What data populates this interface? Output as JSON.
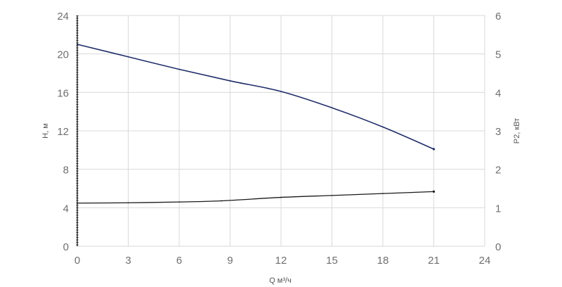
{
  "chart_data": {
    "type": "line",
    "xlabel": "Q м³/ч",
    "ylabel": "H, м",
    "y2label": "P2, кВт",
    "xlim": [
      0,
      24
    ],
    "ylim": [
      0,
      24
    ],
    "y2lim": [
      0,
      6
    ],
    "x_ticks": [
      "0",
      "3",
      "6",
      "9",
      "12",
      "15",
      "18",
      "21",
      "24"
    ],
    "y_ticks": [
      "0",
      "4",
      "8",
      "12",
      "16",
      "20",
      "24"
    ],
    "y2_ticks": [
      "0",
      "1",
      "2",
      "3",
      "4",
      "5",
      "6"
    ],
    "grid": true,
    "series": [
      {
        "axis": "left",
        "color": "#1f2d6b",
        "x": [
          0,
          3,
          6,
          9,
          12,
          15,
          18,
          21
        ],
        "y": [
          21.0,
          19.7,
          18.4,
          17.2,
          16.1,
          14.4,
          12.4,
          10.1
        ]
      },
      {
        "axis": "right",
        "color": "#1a1a1a",
        "x": [
          0,
          3,
          6,
          8.5,
          12,
          15,
          18,
          21
        ],
        "y": [
          1.12,
          1.13,
          1.15,
          1.18,
          1.27,
          1.32,
          1.37,
          1.42
        ]
      }
    ]
  }
}
